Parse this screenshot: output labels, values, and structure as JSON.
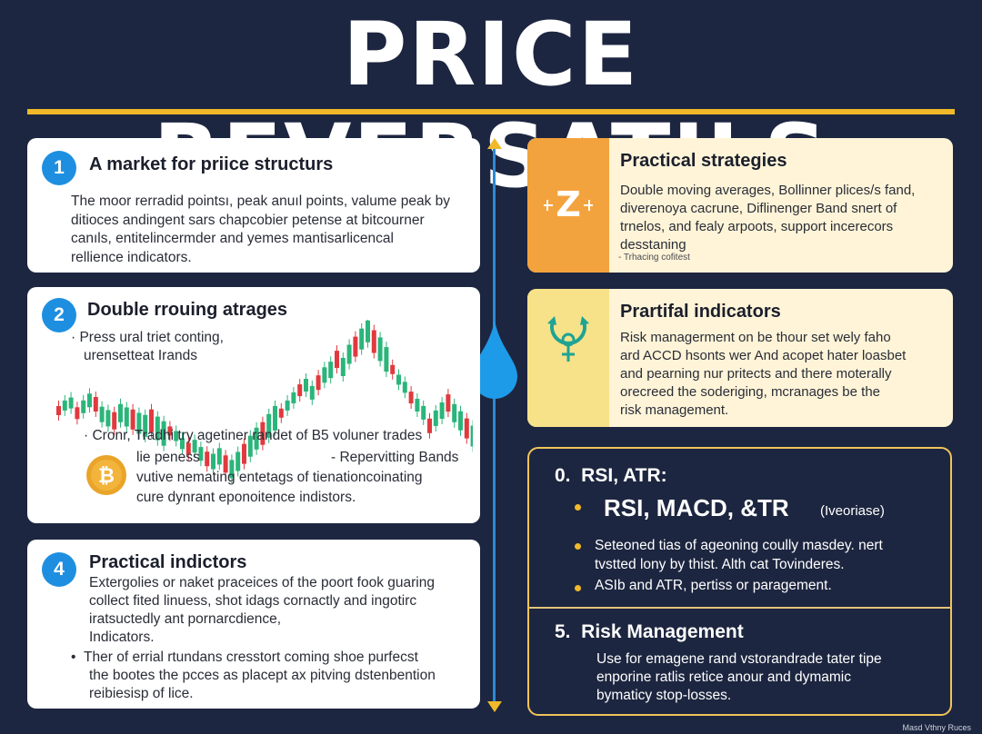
{
  "title": "PRICE REVERSATILS",
  "card1": {
    "number": "1",
    "title": "A market for priice structurs",
    "body": [
      "The moor rerradid pointsı, peak anuıl points, valume peak by",
      "ditioces andingent sars chapcobier petense at bitcourner",
      "canıls, entitelincermder and yemes mantisarlicencal",
      "rellience indicators."
    ]
  },
  "card2": {
    "number": "2",
    "title": "Double rrouing atrages",
    "bullet1": [
      "Press ural triet conting,",
      "urensetteat Irands"
    ],
    "bullet2": "Cronr, Tradhi try agetiner randet   of B5 voluner trades",
    "lines": [
      "lie peness",
      "- Repervitting Bands",
      "vutive nemating entetags of tienationcoinating",
      "cure dynrant eponoitence indistors."
    ],
    "coin_icon": "bitcoin-coin-icon",
    "chart_icon": "candlestick-chart-icon"
  },
  "card4": {
    "number": "4",
    "title": "Practical indictors",
    "body": [
      "Extergolies or naket praceices of the poort fook guaring",
      "collect fited linuess, shot idags cornactly and ingotirc",
      "iratsuctedly ant pornarcdience,",
      "Indicators."
    ],
    "bullet": [
      "Ther of errial rtundans cresstort coming shoe purfecst",
      "the bootes the pcces as placept ax pitving dstenbention",
      "reibiesisp of lice."
    ]
  },
  "card_strat": {
    "title": "Practical strategies",
    "body": [
      "Double moving averages, Bollinner plices/s fand,",
      "diverenoya cacrune, Diflinenger Band snert of",
      "trnelos, and fealy arpoots, support incerecors",
      "desstaning"
    ],
    "caption": "- Trhacing cofitest",
    "icon": "z-letter-icon"
  },
  "card_ind": {
    "title": "Prartifal indicators",
    "body": [
      "Risk managerment on be thour set wely faho",
      "ard ACCD hsonts wer And acopet hater loasbet",
      "and pearning nur pritects and there moterally",
      "orecreed the soderiging, mcranages be the",
      "risk management."
    ],
    "icon": "reversal-cycle-icon"
  },
  "dark": {
    "heading": "0.  RSI, ATR:",
    "sub_main": "RSI, MACD, &TR",
    "sub_small": "(Iveoriase)",
    "bullet1": [
      "Seteoned tias of ageoning coully masdey. nert",
      "tvstted lony by thist. Alth cat Tovinderes."
    ],
    "bullet2": "ASIb and ATR, pertiss or paragement.",
    "heading2": "5.  Risk Management",
    "body2": [
      "Use for emagene rand vstorandrade tater tipe",
      "enporine ratlis retice anour and dymamic",
      "bymaticy stop-losses."
    ]
  },
  "watermark": "Masd Vthny Ruces",
  "colors": {
    "background": "#1d2640",
    "accent": "#f0b92a",
    "number_badge": "#1e8fe0",
    "candle_up": "#2bb57a",
    "candle_down": "#e03a3e"
  }
}
